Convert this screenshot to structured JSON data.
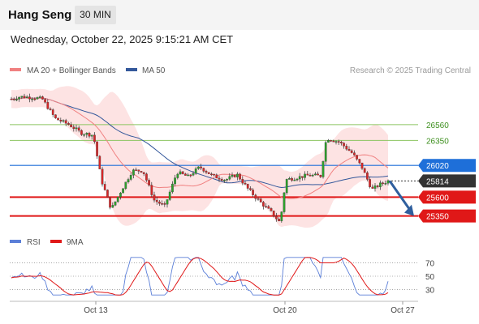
{
  "header": {
    "title": "Hang Seng",
    "timeframe": "30 MIN",
    "datetime": "Wednesday, October 22, 2025 9:15:21 AM CET"
  },
  "chart_data": [
    {
      "type": "candlestick",
      "title": "Hang Seng",
      "legend": [
        {
          "name": "MA 20 + Bollinger Bands",
          "color": "#f08080"
        },
        {
          "name": "MA 50",
          "color": "#34589b"
        }
      ],
      "watermark": "Research © 2025 Trading Central",
      "ylim": [
        25100,
        27180
      ],
      "current_price": {
        "value": 25814,
        "label": "25814",
        "color": "#333333"
      },
      "levels": [
        {
          "value": 26560,
          "label": "26560",
          "kind": "resistance",
          "color": "#8cc560"
        },
        {
          "value": 26350,
          "label": "26350",
          "kind": "resistance",
          "color": "#8cc560"
        },
        {
          "value": 26020,
          "label": "26020",
          "kind": "pivot",
          "color": "#1e6fd9"
        },
        {
          "value": 25600,
          "label": "25600",
          "kind": "support",
          "color": "#e01818"
        },
        {
          "value": 25350,
          "label": "25350",
          "kind": "support",
          "color": "#e01818"
        }
      ],
      "forecast_arrow": {
        "from": 25814,
        "to": 25350,
        "color": "#2f5f9e"
      },
      "x_ticks": [
        "Oct 13",
        "Oct 20",
        "Oct 27"
      ],
      "up_color": "#2ca02c",
      "down_color": "#d62728"
    },
    {
      "type": "line",
      "title": "RSI",
      "legend": [
        {
          "name": "RSI",
          "color": "#5b7fd8"
        },
        {
          "name": "9MA",
          "color": "#e01818"
        }
      ],
      "ylim": [
        15,
        85
      ],
      "y_ticks": [
        70,
        50,
        30
      ]
    }
  ]
}
